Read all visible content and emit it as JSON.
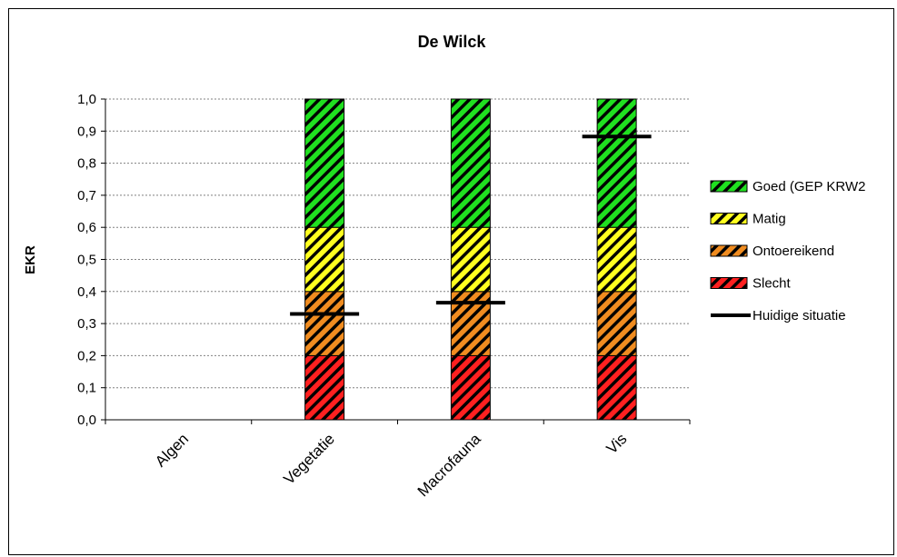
{
  "chart_data": {
    "type": "bar",
    "title": "De Wilck",
    "xlabel": "",
    "ylabel": "EKR",
    "ylim": [
      0,
      1.0
    ],
    "yticks": [
      "0,0",
      "0,1",
      "0,2",
      "0,3",
      "0,4",
      "0,5",
      "0,6",
      "0,7",
      "0,8",
      "0,9",
      "1,0"
    ],
    "grid": true,
    "stacked": true,
    "categories": [
      "Algen",
      "Vegetatie",
      "Macrofauna",
      "Vis"
    ],
    "series": [
      {
        "name": "Slecht",
        "color": "#ff2020",
        "values": [
          0,
          0.2,
          0.2,
          0.2
        ]
      },
      {
        "name": "Ontoereikend",
        "color": "#f08c20",
        "values": [
          0,
          0.2,
          0.2,
          0.2
        ]
      },
      {
        "name": "Matig",
        "color": "#ffff20",
        "values": [
          0,
          0.2,
          0.2,
          0.2
        ]
      },
      {
        "name": "Goed (GEP KRW2",
        "color": "#20e020",
        "values": [
          0,
          0.4,
          0.4,
          0.4
        ]
      }
    ],
    "current_situation": {
      "name": "Huidige situatie",
      "color": "#000000",
      "values": [
        null,
        0.33,
        0.365,
        0.883
      ]
    },
    "legend_position": "right",
    "legend_order": [
      "Goed (GEP KRW2",
      "Matig",
      "Ontoereikend",
      "Slecht",
      "Huidige situatie"
    ]
  }
}
